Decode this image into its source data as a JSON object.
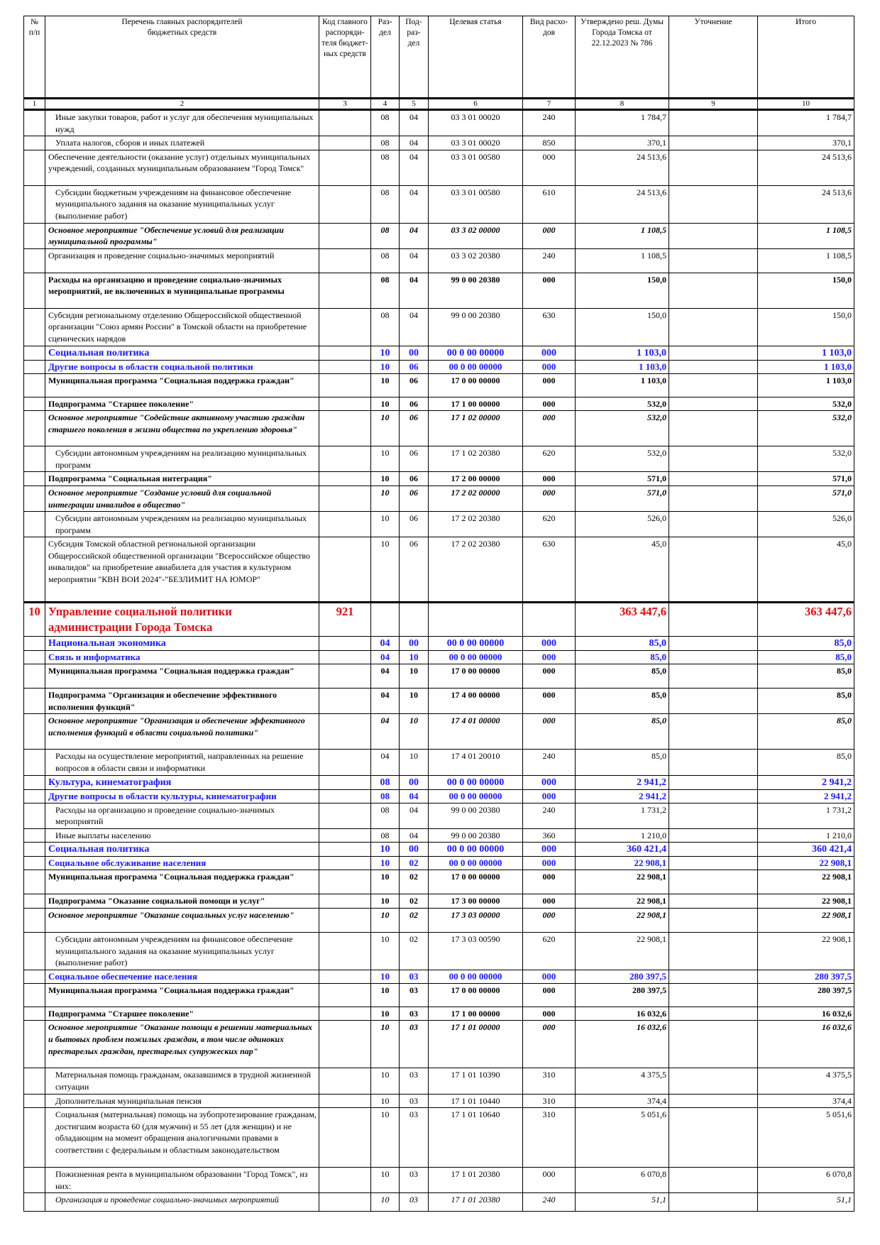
{
  "header": {
    "col1": "№\nп/п",
    "col2": "Перечень главных распорядителей\nбюджетных средств",
    "col3": "Код главного\nраспоряди-\nтеля бюджет-\nных средств",
    "col4": "Раз-\nдел",
    "col5": "Под-\nраз-\nдел",
    "col6": "Целевая статья",
    "col7": "Вид расхо-\nдов",
    "col8": "Утверждено реш. Думы\nГорода Томска от\n22.12.2023 № 786",
    "col9": "Уточнение",
    "col10": "Итого"
  },
  "column_numbers": [
    "1",
    "2",
    "3",
    "4",
    "5",
    "6",
    "7",
    "8",
    "9",
    "10"
  ],
  "rows": [
    {
      "s": "ind",
      "h": 33,
      "no": "",
      "name": "Иные закупки товаров, работ и услуг для обеспечения муниципальных нужд",
      "code": "",
      "sec": "08",
      "sub": "04",
      "art": "03 3 01 00020",
      "vid": "240",
      "appr": "1 784,7",
      "adj": "",
      "total": "1 784,7"
    },
    {
      "s": "ind",
      "h": 17,
      "no": "",
      "name": "Уплата налогов, сборов и иных платежей",
      "code": "",
      "sec": "08",
      "sub": "04",
      "art": "03 3 01 00020",
      "vid": "850",
      "appr": "370,1",
      "adj": "",
      "total": "370,1"
    },
    {
      "s": "",
      "h": 50,
      "no": "",
      "name": "Обеспечение деятельности (оказание услуг) отдельных муниципальных учреждений, созданных муниципальным образованием \"Город Томск\"",
      "code": "",
      "sec": "08",
      "sub": "04",
      "art": "03 3 01 00580",
      "vid": "000",
      "appr": "24 513,6",
      "adj": "",
      "total": "24 513,6"
    },
    {
      "s": "ind",
      "h": 50,
      "no": "",
      "name": "Субсидии бюджетным учреждениям на финансовое обеспечение муниципального задания на оказание муниципальных услуг (выполнение работ)",
      "code": "",
      "sec": "08",
      "sub": "04",
      "art": "03 3 01 00580",
      "vid": "610",
      "appr": "24 513,6",
      "adj": "",
      "total": "24 513,6"
    },
    {
      "s": "bi",
      "h": 34,
      "no": "",
      "name": "Основное мероприятие \"Обеспечение условий для реализации муниципальной программы\"",
      "code": "",
      "sec": "08",
      "sub": "04",
      "art": "03 3 02 00000",
      "vid": "000",
      "appr": "1 108,5",
      "adj": "",
      "total": "1 108,5"
    },
    {
      "s": "",
      "h": 34,
      "no": "",
      "name": "Организация и проведение социально-значимых мероприятий",
      "code": "",
      "sec": "08",
      "sub": "04",
      "art": "03 3 02 20380",
      "vid": "240",
      "appr": "1 108,5",
      "adj": "",
      "total": "1 108,5"
    },
    {
      "s": "bold",
      "h": 50,
      "no": "",
      "name": "Расходы на организацию и проведение социально-значимых мероприятий, не включенных в муниципальные программы",
      "code": "",
      "sec": "08",
      "sub": "04",
      "art": "99 0 00 20380",
      "vid": "000",
      "appr": "150,0",
      "adj": "",
      "total": "150,0"
    },
    {
      "s": "",
      "h": 52,
      "no": "",
      "name": "Субсидия региональному отделению Общероссийской общественной организации \"Союз армян России\" в Томской области на приобретение сценических нарядов",
      "code": "",
      "sec": "08",
      "sub": "04",
      "art": "99 0 00 20380",
      "vid": "630",
      "appr": "150,0",
      "adj": "",
      "total": "150,0"
    },
    {
      "s": "blue",
      "h": 18,
      "no": "",
      "name": "Социальная политика",
      "code": "",
      "sec": "10",
      "sub": "00",
      "art": "00 0 00 00000",
      "vid": "000",
      "appr": "1 103,0",
      "adj": "",
      "total": "1 103,0"
    },
    {
      "s": "blue2",
      "h": 17,
      "no": "",
      "name": "Другие вопросы в области социальной политики",
      "code": "",
      "sec": "10",
      "sub": "06",
      "art": "00 0 00 00000",
      "vid": "000",
      "appr": "1 103,0",
      "adj": "",
      "total": "1 103,0"
    },
    {
      "s": "bold",
      "h": 33,
      "no": "",
      "name": "Муниципальная программа \"Социальная поддержка граждан\"",
      "code": "",
      "sec": "10",
      "sub": "06",
      "art": "17 0 00 00000",
      "vid": "000",
      "appr": "1 103,0",
      "adj": "",
      "total": "1 103,0"
    },
    {
      "s": "bold",
      "h": 17,
      "no": "",
      "name": "Подпрограмма \"Старшее поколение\"",
      "code": "",
      "sec": "10",
      "sub": "06",
      "art": "17 1 00 00000",
      "vid": "000",
      "appr": "532,0",
      "adj": "",
      "total": "532,0"
    },
    {
      "s": "bi",
      "h": 50,
      "no": "",
      "name": "Основное мероприятие \"Содействие активному участию граждан старшего поколения в жизни общества по укреплению здоровья\"",
      "code": "",
      "sec": "10",
      "sub": "06",
      "art": "17 1 02 00000",
      "vid": "000",
      "appr": "532,0",
      "adj": "",
      "total": "532,0"
    },
    {
      "s": "ind",
      "h": 34,
      "no": "",
      "name": "Субсидии автономным учреждениям на реализацию муниципальных программ",
      "code": "",
      "sec": "10",
      "sub": "06",
      "art": "17 1 02 20380",
      "vid": "620",
      "appr": "532,0",
      "adj": "",
      "total": "532,0"
    },
    {
      "s": "bold",
      "h": 17,
      "no": "",
      "name": "Подпрограмма \"Социальная интеграция\"",
      "code": "",
      "sec": "10",
      "sub": "06",
      "art": "17 2 00 00000",
      "vid": "000",
      "appr": "571,0",
      "adj": "",
      "total": "571,0"
    },
    {
      "s": "bi",
      "h": 34,
      "no": "",
      "name": "Основное мероприятие \"Создание условий для социальной интеграции инвалидов в общество\"",
      "code": "",
      "sec": "10",
      "sub": "06",
      "art": "17 2 02 00000",
      "vid": "000",
      "appr": "571,0",
      "adj": "",
      "total": "571,0"
    },
    {
      "s": "ind",
      "h": 33,
      "no": "",
      "name": "Субсидии автономным учреждениям на реализацию муниципальных программ",
      "code": "",
      "sec": "10",
      "sub": "06",
      "art": "17 2 02 20380",
      "vid": "620",
      "appr": "526,0",
      "adj": "",
      "total": "526,0"
    },
    {
      "s": "",
      "h": 92,
      "no": "",
      "name": "Субсидия Томской областной  региональной организации Общероссийской общественной организации \"Всероссийское общество инвалидов\" на приобретение авиабилета для участия в культурном мероприятии \"КВН ВОИ 2024\"-\"БЕЗЛИМИТ НА ЮМОР\"",
      "code": "",
      "sec": "10",
      "sub": "06",
      "art": "17 2 02 20380",
      "vid": "630",
      "appr": "45,0",
      "adj": "",
      "total": "45,0"
    },
    {
      "s": "red",
      "h": 44,
      "no": "10",
      "name": "Управление социальной политики администрации Города Томска",
      "code": "921",
      "sec": "",
      "sub": "",
      "art": "",
      "vid": "",
      "appr": "363 447,6",
      "adj": "",
      "total": "363 447,6"
    },
    {
      "s": "blue",
      "h": 18,
      "no": "",
      "name": "Национальная экономика",
      "code": "",
      "sec": "04",
      "sub": "00",
      "art": "00 0 00 00000",
      "vid": "000",
      "appr": "85,0",
      "adj": "",
      "total": "85,0"
    },
    {
      "s": "blue2",
      "h": 17,
      "no": "",
      "name": "Связь и информатика",
      "code": "",
      "sec": "04",
      "sub": "10",
      "art": "00 0 00 00000",
      "vid": "000",
      "appr": "85,0",
      "adj": "",
      "total": "85,0"
    },
    {
      "s": "bold",
      "h": 34,
      "no": "",
      "name": "Муниципальная программа \"Социальная поддержка граждан\"",
      "code": "",
      "sec": "04",
      "sub": "10",
      "art": "17 0 00 00000",
      "vid": "000",
      "appr": "85,0",
      "adj": "",
      "total": "85,0"
    },
    {
      "s": "bold",
      "h": 34,
      "no": "",
      "name": "Подпрограмма \"Организация и обеспечение эффективного исполнения функций\"",
      "code": "",
      "sec": "04",
      "sub": "10",
      "art": "17 4 00 00000",
      "vid": "000",
      "appr": "85,0",
      "adj": "",
      "total": "85,0"
    },
    {
      "s": "bi",
      "h": 50,
      "no": "",
      "name": "Основное мероприятие \"Организация и обеспечение эффективного исполнения функций в области социальной политики\"",
      "code": "",
      "sec": "04",
      "sub": "10",
      "art": "17 4 01 00000",
      "vid": "000",
      "appr": "85,0",
      "adj": "",
      "total": "85,0"
    },
    {
      "s": "ind",
      "h": 33,
      "no": "",
      "name": "Расходы на осуществление мероприятий, направленных на решение вопросов в области связи и информатики",
      "code": "",
      "sec": "04",
      "sub": "10",
      "art": "17 4 01 20010",
      "vid": "240",
      "appr": "85,0",
      "adj": "",
      "total": "85,0"
    },
    {
      "s": "blue",
      "h": 18,
      "no": "",
      "name": "Культура, кинематография",
      "code": "",
      "sec": "08",
      "sub": "00",
      "art": "00 0 00 00000",
      "vid": "000",
      "appr": "2 941,2",
      "adj": "",
      "total": "2 941,2"
    },
    {
      "s": "blue2",
      "h": 17,
      "no": "",
      "name": "Другие вопросы в области культуры, кинематографии",
      "code": "",
      "sec": "08",
      "sub": "04",
      "art": "00 0 00 00000",
      "vid": "000",
      "appr": "2 941,2",
      "adj": "",
      "total": "2 941,2"
    },
    {
      "s": "ind",
      "h": 34,
      "no": "",
      "name": "Расходы на организацию и проведение социально-значимых мероприятий",
      "code": "",
      "sec": "08",
      "sub": "04",
      "art": "99 0 00 20380",
      "vid": "240",
      "appr": "1 731,2",
      "adj": "",
      "total": "1 731,2"
    },
    {
      "s": "ind",
      "h": 17,
      "no": "",
      "name": "Иные выплаты населению",
      "code": "",
      "sec": "08",
      "sub": "04",
      "art": "99 0 00 20380",
      "vid": "360",
      "appr": "1 210,0",
      "adj": "",
      "total": "1 210,0"
    },
    {
      "s": "blue",
      "h": 18,
      "no": "",
      "name": "Социальная политика",
      "code": "",
      "sec": "10",
      "sub": "00",
      "art": "00 0 00 00000",
      "vid": "000",
      "appr": "360 421,4",
      "adj": "",
      "total": "360 421,4"
    },
    {
      "s": "blue2",
      "h": 17,
      "no": "",
      "name": "Социальное обслуживание населения",
      "code": "",
      "sec": "10",
      "sub": "02",
      "art": "00 0 00 00000",
      "vid": "000",
      "appr": "22 908,1",
      "adj": "",
      "total": "22 908,1"
    },
    {
      "s": "bold",
      "h": 34,
      "no": "",
      "name": "Муниципальная программа \"Социальная поддержка граждан\"",
      "code": "",
      "sec": "10",
      "sub": "02",
      "art": "17 0 00 00000",
      "vid": "000",
      "appr": "22 908,1",
      "adj": "",
      "total": "22 908,1"
    },
    {
      "s": "bold",
      "h": 17,
      "no": "",
      "name": "Подпрограмма \"Оказание социальной помощи и услуг\"",
      "code": "",
      "sec": "10",
      "sub": "02",
      "art": "17 3 00 00000",
      "vid": "000",
      "appr": "22 908,1",
      "adj": "",
      "total": "22 908,1"
    },
    {
      "s": "bi",
      "h": 34,
      "no": "",
      "name": "Основное мероприятие \"Оказание социальных услуг населению\"",
      "code": "",
      "sec": "10",
      "sub": "02",
      "art": "17 3 03 00000",
      "vid": "000",
      "appr": "22 908,1",
      "adj": "",
      "total": "22 908,1"
    },
    {
      "s": "ind",
      "h": 50,
      "no": "",
      "name": "Субсидии автономным учреждениям на финансовое обеспечение муниципального задания на оказание муниципальных услуг (выполнение работ)",
      "code": "",
      "sec": "10",
      "sub": "02",
      "art": "17 3 03 00590",
      "vid": "620",
      "appr": "22 908,1",
      "adj": "",
      "total": "22 908,1"
    },
    {
      "s": "blue2",
      "h": 17,
      "no": "",
      "name": "Социальное обеспечение населения",
      "code": "",
      "sec": "10",
      "sub": "03",
      "art": "00 0 00 00000",
      "vid": "000",
      "appr": "280 397,5",
      "adj": "",
      "total": "280 397,5"
    },
    {
      "s": "bold",
      "h": 33,
      "no": "",
      "name": "Муниципальная программа \"Социальная поддержка граждан\"",
      "code": "",
      "sec": "10",
      "sub": "03",
      "art": "17 0 00 00000",
      "vid": "000",
      "appr": "280 397,5",
      "adj": "",
      "total": "280 397,5"
    },
    {
      "s": "bold",
      "h": 17,
      "no": "",
      "name": "Подпрограмма \"Старшее поколение\"",
      "code": "",
      "sec": "10",
      "sub": "03",
      "art": "17 1 00 00000",
      "vid": "000",
      "appr": "16 032,6",
      "adj": "",
      "total": "16 032,6"
    },
    {
      "s": "bi",
      "h": 67,
      "no": "",
      "name": "Основное мероприятие \"Оказание помощи в решении материальных и бытовых проблем пожилых граждан, в том числе одиноких престарелых граждан, престарелых супружеских пар\"",
      "code": "",
      "sec": "10",
      "sub": "03",
      "art": "17 1 01 00000",
      "vid": "000",
      "appr": "16 032,6",
      "adj": "",
      "total": "16 032,6"
    },
    {
      "s": "ind",
      "h": 33,
      "no": "",
      "name": "Материальная помощь гражданам, оказавшимся в трудной жизненной ситуации",
      "code": "",
      "sec": "10",
      "sub": "03",
      "art": "17 1 01 10390",
      "vid": "310",
      "appr": "4 375,5",
      "adj": "",
      "total": "4 375,5"
    },
    {
      "s": "ind",
      "h": 17,
      "no": "",
      "name": "Дополнительная муниципальная пенсия",
      "code": "",
      "sec": "10",
      "sub": "03",
      "art": "17 1 01 10440",
      "vid": "310",
      "appr": "374,4",
      "adj": "",
      "total": "374,4"
    },
    {
      "s": "ind",
      "h": 84,
      "no": "",
      "name": "Социальная (материальная) помощь на зубопротезирование гражданам, достигшим возраста 60 (для мужчин) и 55 лет (для женщин) и не обладающим на момент обращения аналогичными правами в соответствии с федеральным и областным законодательством",
      "code": "",
      "sec": "10",
      "sub": "03",
      "art": "17 1 01 10640",
      "vid": "310",
      "appr": "5 051,6",
      "adj": "",
      "total": "5 051,6"
    },
    {
      "s": "ind",
      "h": 34,
      "no": "",
      "name": "Пожизненная рента в муниципальном образовании \"Город Томск\", из них:",
      "code": "",
      "sec": "10",
      "sub": "03",
      "art": "17 1 01 20380",
      "vid": "000",
      "appr": "6 070,8",
      "adj": "",
      "total": "6 070,8"
    },
    {
      "s": "ind it",
      "h": 26,
      "no": "",
      "name": "Организация и проведение социально-значимых мероприятий",
      "code": "",
      "sec": "10",
      "sub": "03",
      "art": "17 1 01 20380",
      "vid": "240",
      "appr": "51,1",
      "adj": "",
      "total": "51,1"
    }
  ]
}
